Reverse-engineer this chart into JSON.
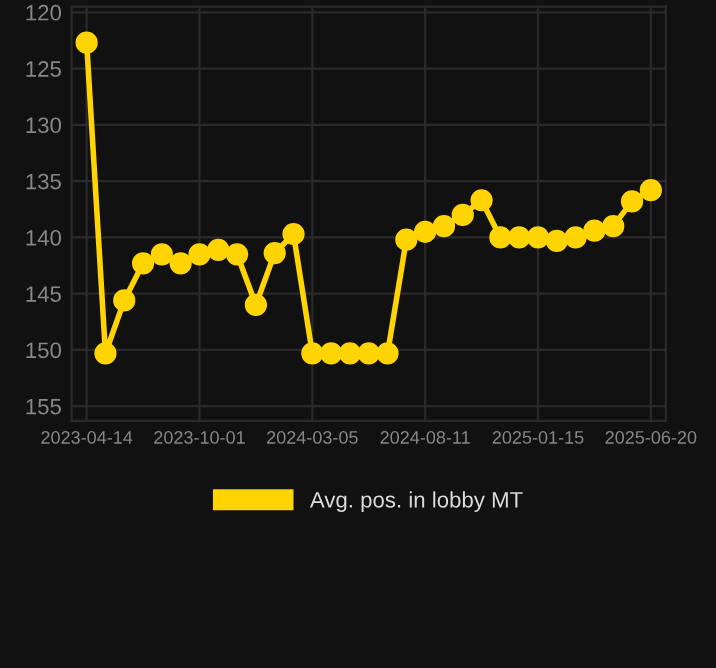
{
  "chart_data": {
    "type": "line",
    "categories": [
      "2023-04-14",
      null,
      null,
      null,
      null,
      null,
      "2023-10-01",
      null,
      null,
      null,
      null,
      null,
      "2024-03-05",
      null,
      null,
      null,
      null,
      null,
      "2024-08-11",
      null,
      null,
      null,
      null,
      null,
      "2025-01-15",
      null,
      null,
      null,
      null,
      null,
      "2025-06-20"
    ],
    "series": [
      {
        "name": "Avg. pos. in lobby MT",
        "color": "#ffd400",
        "values": [
          122.7,
          150.3,
          145.6,
          142.3,
          141.5,
          142.3,
          141.5,
          141.1,
          141.5,
          146,
          141.4,
          139.7,
          150.3,
          150.3,
          150.3,
          150.3,
          150.3,
          140.2,
          139.5,
          139,
          138,
          136.7,
          140,
          140,
          140,
          140.3,
          140,
          139.4,
          139,
          136.8,
          135.8
        ]
      }
    ],
    "ylim": [
      156.3,
      119.5
    ],
    "yticks": [
      120,
      125,
      130,
      135,
      140,
      145,
      150,
      155
    ],
    "grid": true,
    "legend": "bottom",
    "marker": "circle",
    "line_style": "solid"
  }
}
